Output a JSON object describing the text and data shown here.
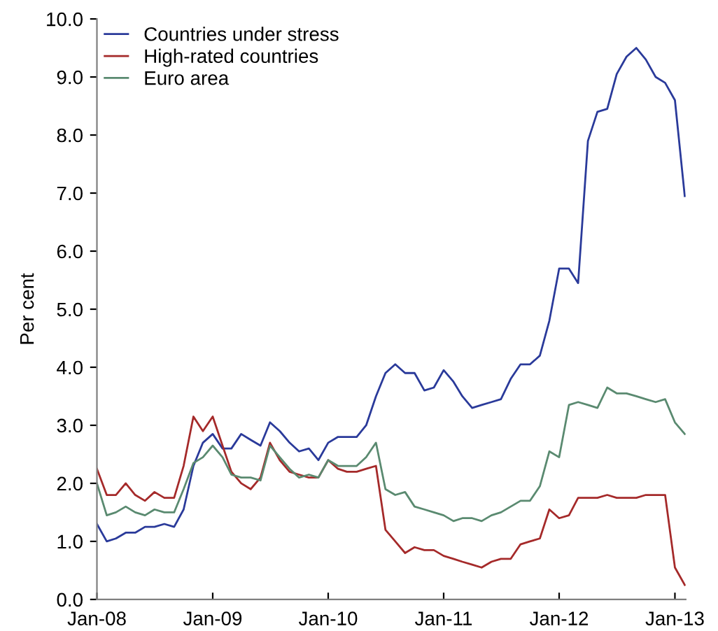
{
  "chart_data": {
    "type": "line",
    "ylabel": "Per cent",
    "legend": "top left",
    "grid": false,
    "marker": "none",
    "line_style": "solid",
    "x": [
      "2008-01",
      "2008-02",
      "2008-03",
      "2008-04",
      "2008-05",
      "2008-06",
      "2008-07",
      "2008-08",
      "2008-09",
      "2008-10",
      "2008-11",
      "2008-12",
      "2009-01",
      "2009-02",
      "2009-03",
      "2009-04",
      "2009-05",
      "2009-06",
      "2009-07",
      "2009-08",
      "2009-09",
      "2009-10",
      "2009-11",
      "2009-12",
      "2010-01",
      "2010-02",
      "2010-03",
      "2010-04",
      "2010-05",
      "2010-06",
      "2010-07",
      "2010-08",
      "2010-09",
      "2010-10",
      "2010-11",
      "2010-12",
      "2011-01",
      "2011-02",
      "2011-03",
      "2011-04",
      "2011-05",
      "2011-06",
      "2011-07",
      "2011-08",
      "2011-09",
      "2011-10",
      "2011-11",
      "2011-12",
      "2012-01",
      "2012-02",
      "2012-03",
      "2012-04",
      "2012-05",
      "2012-06",
      "2012-07",
      "2012-08",
      "2012-09",
      "2012-10",
      "2012-11",
      "2012-12",
      "2013-01",
      "2013-02"
    ],
    "series": [
      {
        "name": "Countries under stress",
        "color": "#2a3a9a",
        "values": [
          1.3,
          1.0,
          1.05,
          1.15,
          1.15,
          1.25,
          1.25,
          1.3,
          1.25,
          1.55,
          2.3,
          2.7,
          2.85,
          2.6,
          2.6,
          2.85,
          2.75,
          2.65,
          3.05,
          2.9,
          2.7,
          2.55,
          2.6,
          2.4,
          2.7,
          2.8,
          2.8,
          2.8,
          3.0,
          3.5,
          3.9,
          4.05,
          3.9,
          3.9,
          3.6,
          3.65,
          3.95,
          3.75,
          3.5,
          3.3,
          3.35,
          3.4,
          3.45,
          3.8,
          4.05,
          4.05,
          4.2,
          4.8,
          5.7,
          5.7,
          5.45,
          7.9,
          8.4,
          8.45,
          9.05,
          9.35,
          9.5,
          9.3,
          9.0,
          8.9,
          8.6,
          6.95
        ]
      },
      {
        "name": "High-rated countries",
        "color": "#a52a2a",
        "values": [
          2.25,
          1.8,
          1.8,
          2.0,
          1.8,
          1.7,
          1.85,
          1.75,
          1.75,
          2.3,
          3.15,
          2.9,
          3.15,
          2.65,
          2.2,
          2.0,
          1.9,
          2.1,
          2.7,
          2.4,
          2.2,
          2.15,
          2.1,
          2.1,
          2.4,
          2.25,
          2.2,
          2.2,
          2.25,
          2.3,
          1.2,
          1.0,
          0.8,
          0.9,
          0.85,
          0.85,
          0.75,
          0.7,
          0.65,
          0.6,
          0.55,
          0.65,
          0.7,
          0.7,
          0.95,
          1.0,
          1.05,
          1.55,
          1.4,
          1.45,
          1.75,
          1.75,
          1.75,
          1.8,
          1.75,
          1.75,
          1.75,
          1.8,
          1.8,
          1.8,
          0.55,
          0.25
        ]
      },
      {
        "name": "Euro area",
        "color": "#5a8a70",
        "values": [
          2.0,
          1.45,
          1.5,
          1.6,
          1.5,
          1.45,
          1.55,
          1.5,
          1.5,
          1.9,
          2.35,
          2.45,
          2.65,
          2.45,
          2.15,
          2.1,
          2.1,
          2.05,
          2.65,
          2.45,
          2.25,
          2.1,
          2.15,
          2.1,
          2.4,
          2.3,
          2.3,
          2.3,
          2.45,
          2.7,
          1.9,
          1.8,
          1.85,
          1.6,
          1.55,
          1.5,
          1.45,
          1.35,
          1.4,
          1.4,
          1.35,
          1.45,
          1.5,
          1.6,
          1.7,
          1.7,
          1.95,
          2.55,
          2.45,
          3.35,
          3.4,
          3.35,
          3.3,
          3.65,
          3.55,
          3.55,
          3.5,
          3.45,
          3.4,
          3.45,
          3.05,
          2.85
        ]
      }
    ],
    "xlim": [
      "2008-01",
      "2013-02"
    ],
    "xticks": [
      {
        "value": "2008-01",
        "label": "Jan-08"
      },
      {
        "value": "2009-01",
        "label": "Jan-09"
      },
      {
        "value": "2010-01",
        "label": "Jan-10"
      },
      {
        "value": "2011-01",
        "label": "Jan-11"
      },
      {
        "value": "2012-01",
        "label": "Jan-12"
      },
      {
        "value": "2013-01",
        "label": "Jan-13"
      }
    ],
    "ylim": [
      0,
      10
    ],
    "yticks": [
      {
        "value": 0,
        "label": "0.0"
      },
      {
        "value": 1,
        "label": "1.0"
      },
      {
        "value": 2,
        "label": "2.0"
      },
      {
        "value": 3,
        "label": "3.0"
      },
      {
        "value": 4,
        "label": "4.0"
      },
      {
        "value": 5,
        "label": "5.0"
      },
      {
        "value": 6,
        "label": "6.0"
      },
      {
        "value": 7,
        "label": "7.0"
      },
      {
        "value": 8,
        "label": "8.0"
      },
      {
        "value": 9,
        "label": "9.0"
      },
      {
        "value": 10,
        "label": "10.0"
      }
    ]
  }
}
